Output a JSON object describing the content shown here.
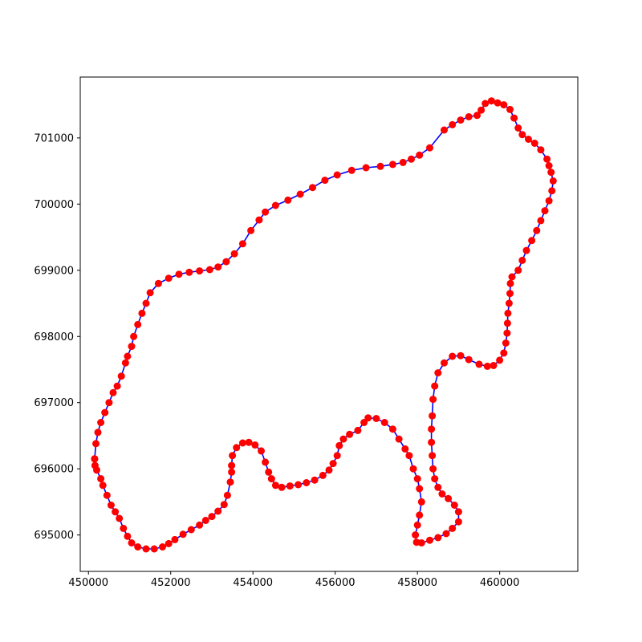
{
  "chart_data": {
    "type": "line",
    "title": "",
    "xlabel": "",
    "ylabel": "",
    "xlim": [
      449800,
      461900
    ],
    "ylim": [
      694450,
      701920
    ],
    "xticks": [
      450000,
      452000,
      454000,
      456000,
      458000,
      460000
    ],
    "yticks": [
      695000,
      696000,
      697000,
      698000,
      699000,
      700000,
      701000
    ],
    "xtick_labels": [
      "450000",
      "452000",
      "454000",
      "456000",
      "458000",
      "460000"
    ],
    "ytick_labels": [
      "695000",
      "696000",
      "697000",
      "698000",
      "699000",
      "700000",
      "701000"
    ],
    "grid": false,
    "line_color": "#0000ff",
    "marker_color": "#ff0000",
    "series": [
      {
        "points": [
          [
            450150,
            696150
          ],
          [
            450160,
            696050
          ],
          [
            450200,
            695980
          ],
          [
            450300,
            695850
          ],
          [
            450350,
            695750
          ],
          [
            450450,
            695600
          ],
          [
            450550,
            695450
          ],
          [
            450650,
            695350
          ],
          [
            450750,
            695250
          ],
          [
            450850,
            695100
          ],
          [
            450950,
            694980
          ],
          [
            451050,
            694880
          ],
          [
            451200,
            694820
          ],
          [
            451400,
            694790
          ],
          [
            451600,
            694790
          ],
          [
            451800,
            694820
          ],
          [
            451950,
            694870
          ],
          [
            452100,
            694930
          ],
          [
            452300,
            695010
          ],
          [
            452500,
            695080
          ],
          [
            452700,
            695150
          ],
          [
            452850,
            695220
          ],
          [
            453000,
            695280
          ],
          [
            453150,
            695360
          ],
          [
            453300,
            695460
          ],
          [
            453380,
            695600
          ],
          [
            453450,
            695800
          ],
          [
            453480,
            695950
          ],
          [
            453480,
            696050
          ],
          [
            453500,
            696200
          ],
          [
            453600,
            696320
          ],
          [
            453750,
            696390
          ],
          [
            453900,
            696400
          ],
          [
            454050,
            696360
          ],
          [
            454200,
            696270
          ],
          [
            454300,
            696100
          ],
          [
            454380,
            695950
          ],
          [
            454450,
            695850
          ],
          [
            454550,
            695750
          ],
          [
            454700,
            695720
          ],
          [
            454900,
            695740
          ],
          [
            455100,
            695760
          ],
          [
            455300,
            695790
          ],
          [
            455500,
            695830
          ],
          [
            455700,
            695900
          ],
          [
            455850,
            695980
          ],
          [
            455950,
            696080
          ],
          [
            456050,
            696200
          ],
          [
            456100,
            696350
          ],
          [
            456200,
            696450
          ],
          [
            456350,
            696520
          ],
          [
            456550,
            696580
          ],
          [
            456700,
            696700
          ],
          [
            456800,
            696770
          ],
          [
            457000,
            696760
          ],
          [
            457200,
            696700
          ],
          [
            457400,
            696600
          ],
          [
            457550,
            696450
          ],
          [
            457700,
            696300
          ],
          [
            457800,
            696200
          ],
          [
            457900,
            696000
          ],
          [
            458000,
            695850
          ],
          [
            458050,
            695700
          ],
          [
            458100,
            695500
          ],
          [
            458050,
            695300
          ],
          [
            458000,
            695150
          ],
          [
            457950,
            695000
          ],
          [
            457980,
            694890
          ],
          [
            458100,
            694880
          ],
          [
            458300,
            694920
          ],
          [
            458500,
            694960
          ],
          [
            458700,
            695020
          ],
          [
            458850,
            695100
          ],
          [
            459000,
            695200
          ],
          [
            459000,
            695350
          ],
          [
            458900,
            695450
          ],
          [
            458750,
            695550
          ],
          [
            458600,
            695620
          ],
          [
            458500,
            695720
          ],
          [
            458420,
            695850
          ],
          [
            458380,
            696000
          ],
          [
            458360,
            696200
          ],
          [
            458340,
            696400
          ],
          [
            458340,
            696600
          ],
          [
            458360,
            696800
          ],
          [
            458380,
            697050
          ],
          [
            458420,
            697250
          ],
          [
            458500,
            697450
          ],
          [
            458650,
            697600
          ],
          [
            458850,
            697700
          ],
          [
            459050,
            697710
          ],
          [
            459250,
            697650
          ],
          [
            459500,
            697580
          ],
          [
            459700,
            697550
          ],
          [
            459850,
            697560
          ],
          [
            460000,
            697640
          ],
          [
            460100,
            697750
          ],
          [
            460150,
            697900
          ],
          [
            460180,
            698050
          ],
          [
            460190,
            698200
          ],
          [
            460200,
            698350
          ],
          [
            460230,
            698500
          ],
          [
            460250,
            698650
          ],
          [
            460260,
            698800
          ],
          [
            460300,
            698900
          ],
          [
            460450,
            699000
          ],
          [
            460550,
            699150
          ],
          [
            460650,
            699300
          ],
          [
            460780,
            699450
          ],
          [
            460900,
            699600
          ],
          [
            461000,
            699750
          ],
          [
            461100,
            699900
          ],
          [
            461200,
            700050
          ],
          [
            461270,
            700200
          ],
          [
            461300,
            700350
          ],
          [
            461250,
            700480
          ],
          [
            461200,
            700580
          ],
          [
            461150,
            700680
          ],
          [
            461000,
            700820
          ],
          [
            460850,
            700920
          ],
          [
            460700,
            700980
          ],
          [
            460550,
            701050
          ],
          [
            460450,
            701150
          ],
          [
            460350,
            701300
          ],
          [
            460250,
            701430
          ],
          [
            460100,
            701500
          ],
          [
            459950,
            701530
          ],
          [
            459800,
            701560
          ],
          [
            459650,
            701520
          ],
          [
            459550,
            701420
          ],
          [
            459450,
            701340
          ],
          [
            459250,
            701320
          ],
          [
            459050,
            701270
          ],
          [
            458850,
            701200
          ],
          [
            458650,
            701120
          ],
          [
            458300,
            700850
          ],
          [
            458050,
            700740
          ],
          [
            457850,
            700680
          ],
          [
            457650,
            700630
          ],
          [
            457400,
            700600
          ],
          [
            457100,
            700570
          ],
          [
            456750,
            700550
          ],
          [
            456400,
            700510
          ],
          [
            456050,
            700440
          ],
          [
            455750,
            700360
          ],
          [
            455450,
            700250
          ],
          [
            455150,
            700150
          ],
          [
            454850,
            700060
          ],
          [
            454550,
            699980
          ],
          [
            454300,
            699880
          ],
          [
            454150,
            699760
          ],
          [
            453950,
            699600
          ],
          [
            453750,
            699400
          ],
          [
            453550,
            699250
          ],
          [
            453350,
            699130
          ],
          [
            453150,
            699050
          ],
          [
            452950,
            699010
          ],
          [
            452700,
            698990
          ],
          [
            452450,
            698970
          ],
          [
            452200,
            698940
          ],
          [
            451950,
            698880
          ],
          [
            451700,
            698800
          ],
          [
            451500,
            698660
          ],
          [
            451400,
            698500
          ],
          [
            451300,
            698350
          ],
          [
            451200,
            698180
          ],
          [
            451100,
            698000
          ],
          [
            451050,
            697850
          ],
          [
            450950,
            697700
          ],
          [
            450900,
            697600
          ],
          [
            450800,
            697400
          ],
          [
            450700,
            697250
          ],
          [
            450600,
            697150
          ],
          [
            450500,
            697000
          ],
          [
            450400,
            696850
          ],
          [
            450300,
            696700
          ],
          [
            450230,
            696550
          ],
          [
            450180,
            696380
          ],
          [
            450150,
            696150
          ]
        ]
      }
    ]
  }
}
